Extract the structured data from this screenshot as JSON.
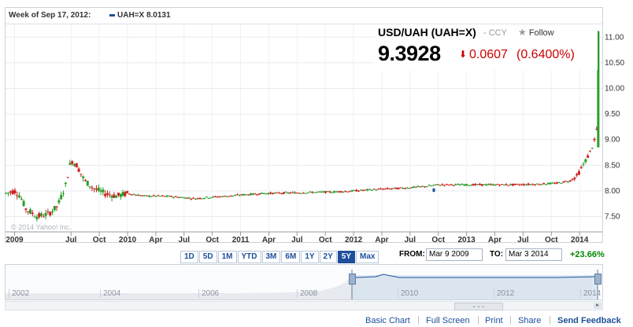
{
  "info_bar": {
    "week": "Week of Sep 17, 2012:",
    "series_label": "UAH=X 8.0131",
    "series_color": "#1d4f9c"
  },
  "quote": {
    "title": "USD/UAH (UAH=X)",
    "type": "- CCY",
    "follow": "Follow",
    "price": "9.3928",
    "change": "0.0607",
    "change_pct": "(0.6400%)",
    "change_color": "#cc0000",
    "direction": "down"
  },
  "watermark": "© 2014 Yahoo! Inc.",
  "ranges": [
    "1D",
    "5D",
    "1M",
    "YTD",
    "3M",
    "6M",
    "1Y",
    "2Y",
    "5Y",
    "Max"
  ],
  "selected_range": "5Y",
  "from_label": "FROM:",
  "from_value": "Mar 9 2009",
  "to_label": "TO:",
  "to_value": "Mar 3 2014",
  "period_change": "+23.66%",
  "navigator_years": [
    "2002",
    "2004",
    "2006",
    "2008",
    "2010",
    "2012",
    "2014"
  ],
  "footer": {
    "basic_chart": "Basic Chart",
    "full_screen": "Full Screen",
    "print": "Print",
    "share": "Share",
    "send_feedback": "Send Feedback"
  },
  "chart_data": {
    "type": "candlestick",
    "y_ticks": [
      "11.00",
      "10.50",
      "10.00",
      "9.50",
      "9.00",
      "8.50",
      "8.00",
      "7.50"
    ],
    "y_tick_values": [
      11.0,
      10.5,
      10.0,
      9.5,
      9.0,
      8.5,
      8.0,
      7.5
    ],
    "ylim": [
      7.2,
      11.25
    ],
    "x_ticks": [
      "2009",
      "Jul",
      "Oct",
      "2010",
      "Apr",
      "Jul",
      "Oct",
      "2011",
      "Apr",
      "Jul",
      "Oct",
      "2012",
      "Apr",
      "Jul",
      "Oct",
      "2013",
      "Apr",
      "Jul",
      "Oct",
      "2014"
    ],
    "x_tick_values": [
      2009.0,
      2009.5,
      2009.75,
      2010.0,
      2010.25,
      2010.5,
      2010.75,
      2011.0,
      2011.25,
      2011.5,
      2011.75,
      2012.0,
      2012.25,
      2012.5,
      2012.75,
      2013.0,
      2013.25,
      2013.5,
      2013.75,
      2014.0
    ],
    "xlim": [
      2008.92,
      2014.18
    ],
    "points": [
      {
        "t": 2008.92,
        "v": 7.95
      },
      {
        "t": 2009.0,
        "v": 8.0
      },
      {
        "t": 2009.05,
        "v": 7.9
      },
      {
        "t": 2009.1,
        "v": 7.65
      },
      {
        "t": 2009.2,
        "v": 7.5
      },
      {
        "t": 2009.3,
        "v": 7.55
      },
      {
        "t": 2009.38,
        "v": 7.7
      },
      {
        "t": 2009.45,
        "v": 8.1
      },
      {
        "t": 2009.5,
        "v": 8.6
      },
      {
        "t": 2009.55,
        "v": 8.5
      },
      {
        "t": 2009.62,
        "v": 8.2
      },
      {
        "t": 2009.7,
        "v": 8.05
      },
      {
        "t": 2009.8,
        "v": 7.95
      },
      {
        "t": 2009.9,
        "v": 7.9
      },
      {
        "t": 2010.0,
        "v": 7.95
      },
      {
        "t": 2010.15,
        "v": 7.9
      },
      {
        "t": 2010.3,
        "v": 7.9
      },
      {
        "t": 2010.45,
        "v": 7.88
      },
      {
        "t": 2010.6,
        "v": 7.85
      },
      {
        "t": 2010.75,
        "v": 7.88
      },
      {
        "t": 2010.9,
        "v": 7.9
      },
      {
        "t": 2011.0,
        "v": 7.92
      },
      {
        "t": 2011.2,
        "v": 7.95
      },
      {
        "t": 2011.4,
        "v": 7.96
      },
      {
        "t": 2011.6,
        "v": 7.97
      },
      {
        "t": 2011.8,
        "v": 7.98
      },
      {
        "t": 2012.0,
        "v": 8.0
      },
      {
        "t": 2012.2,
        "v": 8.03
      },
      {
        "t": 2012.4,
        "v": 8.05
      },
      {
        "t": 2012.6,
        "v": 8.08
      },
      {
        "t": 2012.75,
        "v": 8.12
      },
      {
        "t": 2012.9,
        "v": 8.12
      },
      {
        "t": 2013.0,
        "v": 8.12
      },
      {
        "t": 2013.2,
        "v": 8.12
      },
      {
        "t": 2013.4,
        "v": 8.12
      },
      {
        "t": 2013.6,
        "v": 8.13
      },
      {
        "t": 2013.8,
        "v": 8.15
      },
      {
        "t": 2013.92,
        "v": 8.2
      },
      {
        "t": 2013.98,
        "v": 8.3
      },
      {
        "t": 2014.03,
        "v": 8.5
      },
      {
        "t": 2014.08,
        "v": 8.7
      },
      {
        "t": 2014.12,
        "v": 8.9
      },
      {
        "t": 2014.15,
        "v": 9.1
      },
      {
        "t": 2014.17,
        "v": 11.1
      }
    ]
  }
}
